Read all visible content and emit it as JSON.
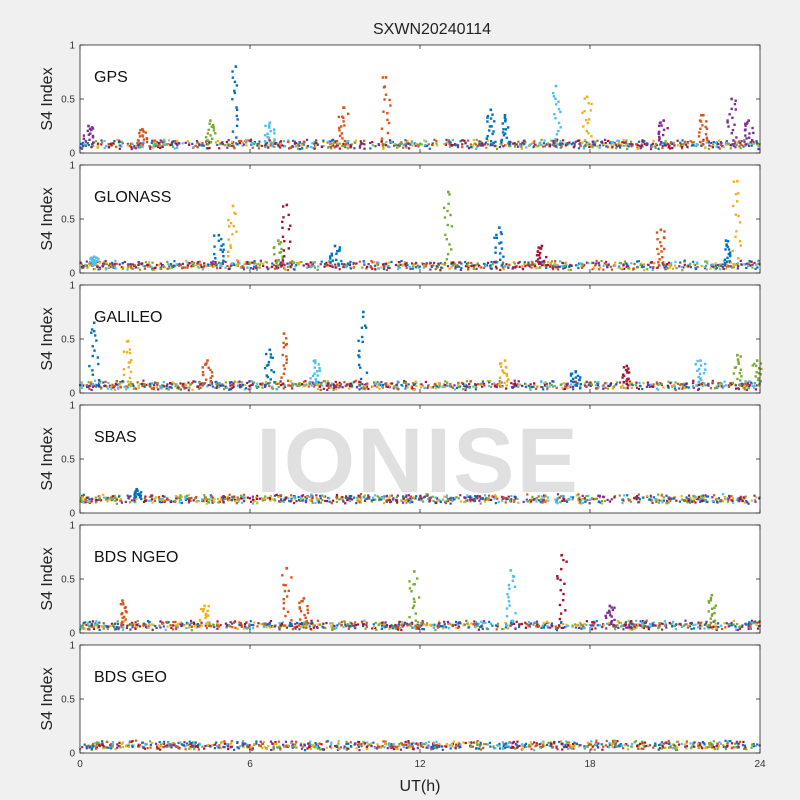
{
  "figure": {
    "title": "SXWN20240114",
    "watermark": "IONISE",
    "background": "#f0f0f0"
  },
  "chart_data": [
    {
      "type": "scatter",
      "panel_label": "GPS",
      "ylabel": "S4 Index",
      "xlabel": "",
      "xlim": [
        0,
        24
      ],
      "ylim": [
        0,
        1
      ],
      "xticks": [],
      "yticks": [
        "0",
        "0.5",
        "1"
      ],
      "baseline_s4": 0.08,
      "spikes": [
        {
          "x": 0.3,
          "peak": 0.25,
          "color": "#7e2f8e"
        },
        {
          "x": 2.2,
          "peak": 0.22,
          "color": "#d95319"
        },
        {
          "x": 4.6,
          "peak": 0.3,
          "color": "#77ac30"
        },
        {
          "x": 5.5,
          "peak": 0.8,
          "color": "#0072bd"
        },
        {
          "x": 6.7,
          "peak": 0.28,
          "color": "#4dbeee"
        },
        {
          "x": 9.3,
          "peak": 0.42,
          "color": "#d95319"
        },
        {
          "x": 10.8,
          "peak": 0.7,
          "color": "#d95319"
        },
        {
          "x": 14.5,
          "peak": 0.4,
          "color": "#0072bd"
        },
        {
          "x": 15.0,
          "peak": 0.35,
          "color": "#0072bd"
        },
        {
          "x": 16.8,
          "peak": 0.62,
          "color": "#4dbeee"
        },
        {
          "x": 17.9,
          "peak": 0.52,
          "color": "#edb120"
        },
        {
          "x": 20.6,
          "peak": 0.3,
          "color": "#7e2f8e"
        },
        {
          "x": 22.0,
          "peak": 0.35,
          "color": "#d95319"
        },
        {
          "x": 23.0,
          "peak": 0.5,
          "color": "#7e2f8e"
        },
        {
          "x": 23.6,
          "peak": 0.3,
          "color": "#7e2f8e"
        }
      ]
    },
    {
      "type": "scatter",
      "panel_label": "GLONASS",
      "ylabel": "S4 Index",
      "xlabel": "",
      "xlim": [
        0,
        24
      ],
      "ylim": [
        0,
        1
      ],
      "xticks": [],
      "yticks": [
        "0",
        "0.5",
        "1"
      ],
      "baseline_s4": 0.07,
      "spikes": [
        {
          "x": 0.5,
          "peak": 0.15,
          "color": "#4dbeee"
        },
        {
          "x": 4.9,
          "peak": 0.35,
          "color": "#0072bd"
        },
        {
          "x": 5.4,
          "peak": 0.62,
          "color": "#edb120"
        },
        {
          "x": 7.0,
          "peak": 0.3,
          "color": "#77ac30"
        },
        {
          "x": 7.3,
          "peak": 0.63,
          "color": "#a2142f"
        },
        {
          "x": 9.0,
          "peak": 0.25,
          "color": "#0072bd"
        },
        {
          "x": 13.0,
          "peak": 0.75,
          "color": "#77ac30"
        },
        {
          "x": 14.8,
          "peak": 0.42,
          "color": "#0072bd"
        },
        {
          "x": 16.3,
          "peak": 0.25,
          "color": "#a2142f"
        },
        {
          "x": 20.5,
          "peak": 0.4,
          "color": "#d95319"
        },
        {
          "x": 22.8,
          "peak": 0.3,
          "color": "#0072bd"
        },
        {
          "x": 23.2,
          "peak": 0.85,
          "color": "#edb120"
        }
      ]
    },
    {
      "type": "scatter",
      "panel_label": "GALILEO",
      "ylabel": "S4 Index",
      "xlabel": "",
      "xlim": [
        0,
        24
      ],
      "ylim": [
        0,
        1
      ],
      "xticks": [],
      "yticks": [
        "0",
        "0.5",
        "1"
      ],
      "baseline_s4": 0.07,
      "spikes": [
        {
          "x": 0.5,
          "peak": 0.65,
          "color": "#0072bd"
        },
        {
          "x": 1.7,
          "peak": 0.48,
          "color": "#edb120"
        },
        {
          "x": 4.5,
          "peak": 0.3,
          "color": "#d95319"
        },
        {
          "x": 6.7,
          "peak": 0.4,
          "color": "#0072bd"
        },
        {
          "x": 7.2,
          "peak": 0.55,
          "color": "#d95319"
        },
        {
          "x": 8.3,
          "peak": 0.3,
          "color": "#4dbeee"
        },
        {
          "x": 10.0,
          "peak": 0.75,
          "color": "#0072bd"
        },
        {
          "x": 15.0,
          "peak": 0.3,
          "color": "#edb120"
        },
        {
          "x": 17.5,
          "peak": 0.2,
          "color": "#0072bd"
        },
        {
          "x": 19.3,
          "peak": 0.25,
          "color": "#a2142f"
        },
        {
          "x": 21.9,
          "peak": 0.3,
          "color": "#4dbeee"
        },
        {
          "x": 23.2,
          "peak": 0.35,
          "color": "#77ac30"
        },
        {
          "x": 23.9,
          "peak": 0.3,
          "color": "#77ac30"
        }
      ]
    },
    {
      "type": "scatter",
      "panel_label": "SBAS",
      "ylabel": "S4 Index",
      "xlabel": "",
      "xlim": [
        0,
        24
      ],
      "ylim": [
        0,
        1
      ],
      "xticks": [],
      "yticks": [
        "0",
        "0.5",
        "1"
      ],
      "baseline_s4": 0.13,
      "spikes": [
        {
          "x": 2.0,
          "peak": 0.22,
          "color": "#0072bd"
        }
      ]
    },
    {
      "type": "scatter",
      "panel_label": "BDS NGEO",
      "ylabel": "S4 Index",
      "xlabel": "",
      "xlim": [
        0,
        24
      ],
      "ylim": [
        0,
        1
      ],
      "xticks": [],
      "yticks": [
        "0",
        "0.5",
        "1"
      ],
      "baseline_s4": 0.07,
      "spikes": [
        {
          "x": 1.5,
          "peak": 0.3,
          "color": "#d95319"
        },
        {
          "x": 4.4,
          "peak": 0.25,
          "color": "#edb120"
        },
        {
          "x": 7.3,
          "peak": 0.6,
          "color": "#d95319"
        },
        {
          "x": 7.9,
          "peak": 0.32,
          "color": "#d95319"
        },
        {
          "x": 11.8,
          "peak": 0.57,
          "color": "#77ac30"
        },
        {
          "x": 15.2,
          "peak": 0.58,
          "color": "#4dbeee"
        },
        {
          "x": 17.0,
          "peak": 0.72,
          "color": "#a2142f"
        },
        {
          "x": 18.7,
          "peak": 0.25,
          "color": "#7e2f8e"
        },
        {
          "x": 22.3,
          "peak": 0.35,
          "color": "#77ac30"
        }
      ]
    },
    {
      "type": "scatter",
      "panel_label": "BDS GEO",
      "ylabel": "S4 Index",
      "xlabel": "UT(h)",
      "xlim": [
        0,
        24
      ],
      "ylim": [
        0,
        1
      ],
      "xticks": [
        "0",
        "6",
        "12",
        "18",
        "24"
      ],
      "yticks": [
        "0",
        "0.5",
        "1"
      ],
      "baseline_s4": 0.07,
      "spikes": []
    }
  ],
  "series_colors": [
    "#0072bd",
    "#d95319",
    "#edb120",
    "#7e2f8e",
    "#77ac30",
    "#4dbeee",
    "#a2142f"
  ]
}
